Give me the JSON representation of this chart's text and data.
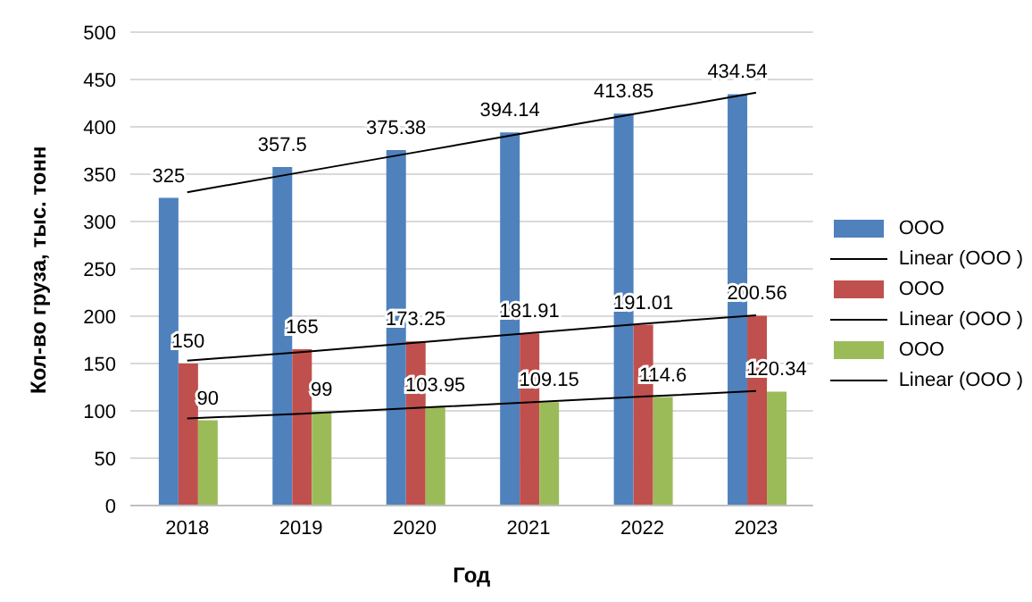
{
  "chart_data": {
    "type": "bar",
    "xlabel": "Год",
    "ylabel": "Кол-во груза, тыс. тонн",
    "categories": [
      "2018",
      "2019",
      "2020",
      "2021",
      "2022",
      "2023"
    ],
    "series": [
      {
        "name": "ООО",
        "color": "#4f81bd",
        "values": [
          325,
          357.5,
          375.38,
          394.14,
          413.85,
          434.54
        ],
        "value_labels": [
          "325",
          "357.5",
          "375.38",
          "394.14",
          "413.85",
          "434.54"
        ]
      },
      {
        "name": "Linear (ООО )",
        "type": "line",
        "color": "#000000",
        "values": [
          331,
          352,
          373,
          394,
          415,
          436
        ]
      },
      {
        "name": "ООО",
        "color": "#c0504d",
        "values": [
          150,
          165,
          173.25,
          181.91,
          191.01,
          200.56
        ],
        "value_labels": [
          "150",
          "165",
          "173.25",
          "181.91",
          "191.01",
          "200.56"
        ]
      },
      {
        "name": "Linear (ООО )",
        "type": "line",
        "color": "#000000",
        "values": [
          153,
          162,
          172,
          182,
          192,
          201
        ]
      },
      {
        "name": "ООО",
        "color": "#9bbb59",
        "values": [
          90,
          99,
          103.95,
          109.15,
          114.6,
          120.34
        ],
        "value_labels": [
          "90",
          "99",
          "103.95",
          "109.15",
          "114.6",
          "120.34"
        ]
      },
      {
        "name": "Linear (ООО )",
        "type": "line",
        "color": "#000000",
        "values": [
          92,
          97,
          103,
          109,
          115,
          121
        ]
      }
    ],
    "ylim": [
      0,
      500
    ],
    "yticks": [
      0,
      50,
      100,
      150,
      200,
      250,
      300,
      350,
      400,
      450,
      500
    ],
    "grid": "y",
    "legend": "right",
    "marker": "none",
    "line_style": "solid"
  }
}
